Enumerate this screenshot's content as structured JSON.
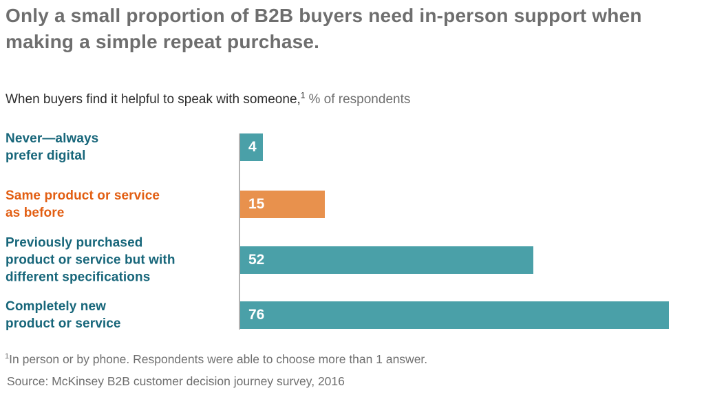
{
  "title": "Only a small proportion of B2B buyers need in-person support when making a simple repeat purchase.",
  "subtitle": {
    "lead": "When buyers find it helpful to speak with someone,",
    "superscript": "1",
    "unit": "% of respondents"
  },
  "colors": {
    "teal_bar": "#4AA0A8",
    "orange_bar": "#E8914D",
    "teal_label": "#17667A",
    "orange_label": "#E25E12",
    "title_gray": "#6E6E6E",
    "footnote_gray": "#6F6F6F",
    "axis_gray": "#B3B3B3",
    "value_text": "#FFFFFF"
  },
  "chart_data": {
    "type": "bar",
    "orientation": "horizontal",
    "title": "When buyers find it helpful to speak with someone, % of respondents",
    "xlabel": "% of respondents",
    "ylabel": "",
    "xlim": [
      0,
      100
    ],
    "grid": false,
    "legend": "none",
    "categories": [
      "Never—always prefer digital",
      "Same product or service as before",
      "Previously purchased product or service but with different specifications",
      "Completely new product or service"
    ],
    "values": [
      4,
      15,
      52,
      76
    ],
    "rows": [
      {
        "label_lines": [
          "Never—always",
          "prefer digital"
        ],
        "value": 4,
        "bar_color": "#4AA0A8",
        "label_color": "#17667A"
      },
      {
        "label_lines": [
          "Same product or service",
          "as before"
        ],
        "value": 15,
        "bar_color": "#E8914D",
        "label_color": "#E25E12"
      },
      {
        "label_lines": [
          "Previously purchased",
          "product or service but with",
          "different specifications"
        ],
        "value": 52,
        "bar_color": "#4AA0A8",
        "label_color": "#17667A"
      },
      {
        "label_lines": [
          "Completely new",
          "product or service"
        ],
        "value": 76,
        "bar_color": "#4AA0A8",
        "label_color": "#17667A"
      }
    ]
  },
  "footnote": {
    "superscript": "1",
    "text": "In person or by phone. Respondents were able to choose more than 1 answer."
  },
  "source": "Source: McKinsey B2B customer decision journey survey, 2016"
}
